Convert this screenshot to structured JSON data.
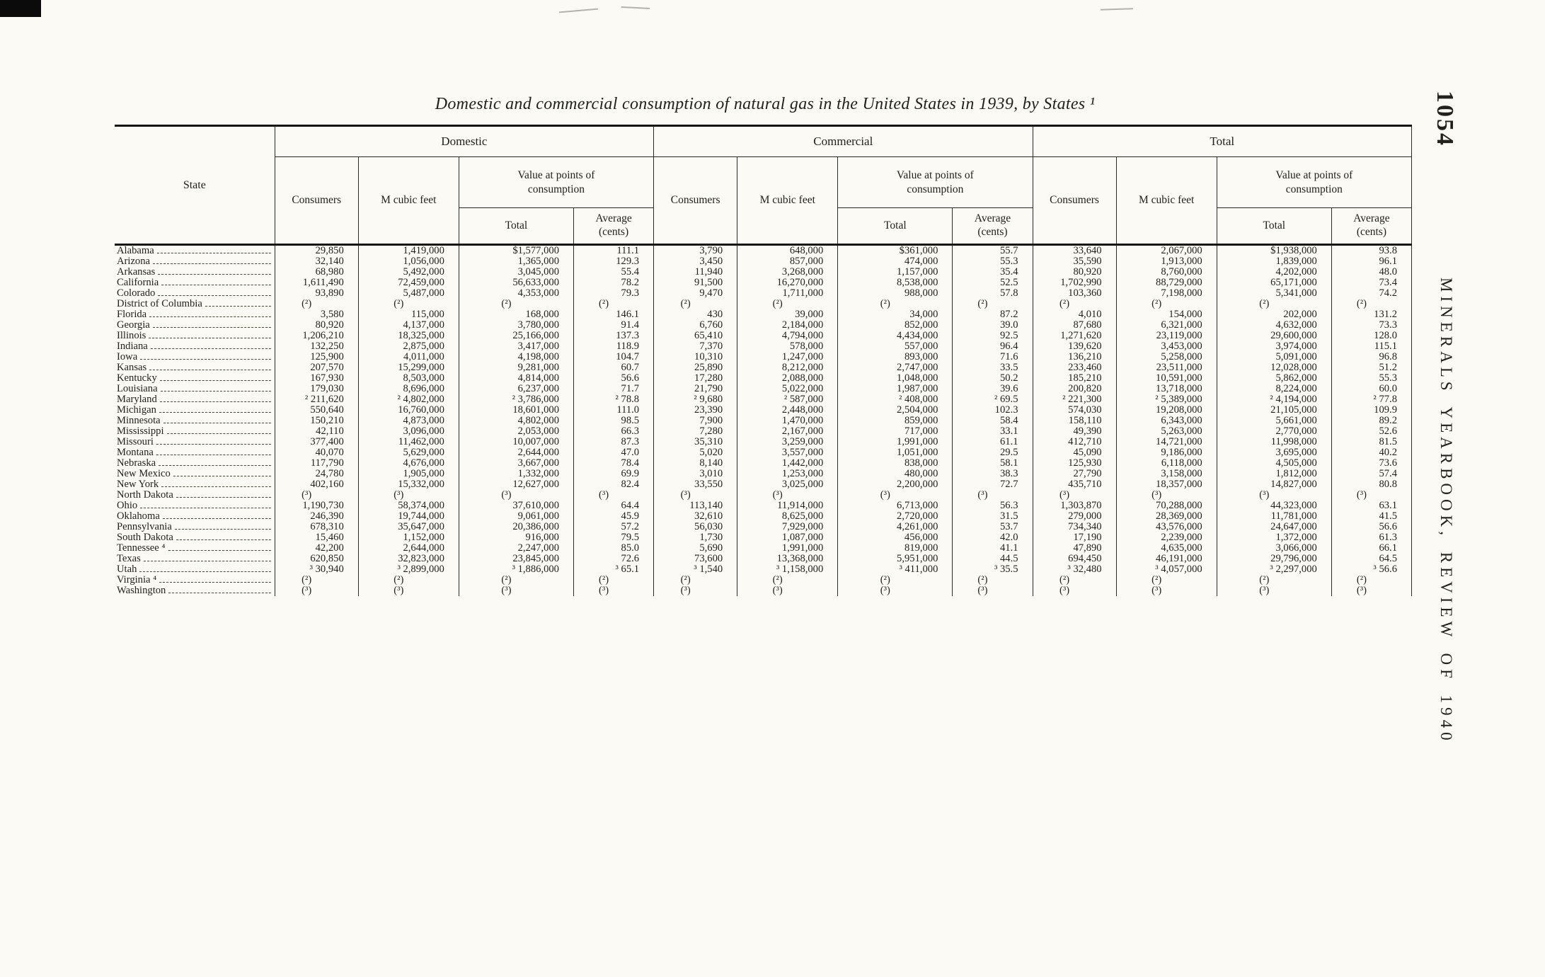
{
  "page": {
    "number": "1054",
    "running_title": "MINERALS YEARBOOK, REVIEW OF 1940"
  },
  "colors": {
    "paper": "#fbfaf4",
    "ink": "#23211c"
  },
  "title": "Domestic and commercial consumption of natural gas in the United States in 1939, by States ¹",
  "table": {
    "state_header": "State",
    "group_headers": [
      "Domestic",
      "Commercial",
      "Total"
    ],
    "sub_headers": {
      "consumers": "Consumers",
      "m_cubic_feet": "M cubic feet",
      "value_at_points": "Value at points of consumption",
      "total": "Total",
      "average": "Average (cents)"
    },
    "rows": [
      [
        "Alabama",
        "29,850",
        "1,419,000",
        "$1,577,000",
        "111.1",
        "3,790",
        "648,000",
        "$361,000",
        "55.7",
        "33,640",
        "2,067,000",
        "$1,938,000",
        "93.8"
      ],
      [
        "Arizona",
        "32,140",
        "1,056,000",
        "1,365,000",
        "129.3",
        "3,450",
        "857,000",
        "474,000",
        "55.3",
        "35,590",
        "1,913,000",
        "1,839,000",
        "96.1"
      ],
      [
        "Arkansas",
        "68,980",
        "5,492,000",
        "3,045,000",
        "55.4",
        "11,940",
        "3,268,000",
        "1,157,000",
        "35.4",
        "80,920",
        "8,760,000",
        "4,202,000",
        "48.0"
      ],
      [
        "California",
        "1,611,490",
        "72,459,000",
        "56,633,000",
        "78.2",
        "91,500",
        "16,270,000",
        "8,538,000",
        "52.5",
        "1,702,990",
        "88,729,000",
        "65,171,000",
        "73.4"
      ],
      [
        "Colorado",
        "93,890",
        "5,487,000",
        "4,353,000",
        "79.3",
        "9,470",
        "1,711,000",
        "988,000",
        "57.8",
        "103,360",
        "7,198,000",
        "5,341,000",
        "74.2"
      ],
      [
        "District of Columbia",
        "(²)",
        "(²)",
        "(²)",
        "(²)",
        "(²)",
        "(²)",
        "(²)",
        "(²)",
        "(²)",
        "(²)",
        "(²)",
        "(²)"
      ],
      [
        "Florida",
        "3,580",
        "115,000",
        "168,000",
        "146.1",
        "430",
        "39,000",
        "34,000",
        "87.2",
        "4,010",
        "154,000",
        "202,000",
        "131.2"
      ],
      [
        "Georgia",
        "80,920",
        "4,137,000",
        "3,780,000",
        "91.4",
        "6,760",
        "2,184,000",
        "852,000",
        "39.0",
        "87,680",
        "6,321,000",
        "4,632,000",
        "73.3"
      ],
      [
        "Illinois",
        "1,206,210",
        "18,325,000",
        "25,166,000",
        "137.3",
        "65,410",
        "4,794,000",
        "4,434,000",
        "92.5",
        "1,271,620",
        "23,119,000",
        "29,600,000",
        "128.0"
      ],
      [
        "Indiana",
        "132,250",
        "2,875,000",
        "3,417,000",
        "118.9",
        "7,370",
        "578,000",
        "557,000",
        "96.4",
        "139,620",
        "3,453,000",
        "3,974,000",
        "115.1"
      ],
      [
        "Iowa",
        "125,900",
        "4,011,000",
        "4,198,000",
        "104.7",
        "10,310",
        "1,247,000",
        "893,000",
        "71.6",
        "136,210",
        "5,258,000",
        "5,091,000",
        "96.8"
      ],
      [
        "Kansas",
        "207,570",
        "15,299,000",
        "9,281,000",
        "60.7",
        "25,890",
        "8,212,000",
        "2,747,000",
        "33.5",
        "233,460",
        "23,511,000",
        "12,028,000",
        "51.2"
      ],
      [
        "Kentucky",
        "167,930",
        "8,503,000",
        "4,814,000",
        "56.6",
        "17,280",
        "2,088,000",
        "1,048,000",
        "50.2",
        "185,210",
        "10,591,000",
        "5,862,000",
        "55.3"
      ],
      [
        "Louisiana",
        "179,030",
        "8,696,000",
        "6,237,000",
        "71.7",
        "21,790",
        "5,022,000",
        "1,987,000",
        "39.6",
        "200,820",
        "13,718,000",
        "8,224,000",
        "60.0"
      ],
      [
        "Maryland",
        "² 211,620",
        "² 4,802,000",
        "² 3,786,000",
        "² 78.8",
        "² 9,680",
        "² 587,000",
        "² 408,000",
        "² 69.5",
        "² 221,300",
        "² 5,389,000",
        "² 4,194,000",
        "² 77.8"
      ],
      [
        "Michigan",
        "550,640",
        "16,760,000",
        "18,601,000",
        "111.0",
        "23,390",
        "2,448,000",
        "2,504,000",
        "102.3",
        "574,030",
        "19,208,000",
        "21,105,000",
        "109.9"
      ],
      [
        "Minnesota",
        "150,210",
        "4,873,000",
        "4,802,000",
        "98.5",
        "7,900",
        "1,470,000",
        "859,000",
        "58.4",
        "158,110",
        "6,343,000",
        "5,661,000",
        "89.2"
      ],
      [
        "Mississippi",
        "42,110",
        "3,096,000",
        "2,053,000",
        "66.3",
        "7,280",
        "2,167,000",
        "717,000",
        "33.1",
        "49,390",
        "5,263,000",
        "2,770,000",
        "52.6"
      ],
      [
        "Missouri",
        "377,400",
        "11,462,000",
        "10,007,000",
        "87.3",
        "35,310",
        "3,259,000",
        "1,991,000",
        "61.1",
        "412,710",
        "14,721,000",
        "11,998,000",
        "81.5"
      ],
      [
        "Montana",
        "40,070",
        "5,629,000",
        "2,644,000",
        "47.0",
        "5,020",
        "3,557,000",
        "1,051,000",
        "29.5",
        "45,090",
        "9,186,000",
        "3,695,000",
        "40.2"
      ],
      [
        "Nebraska",
        "117,790",
        "4,676,000",
        "3,667,000",
        "78.4",
        "8,140",
        "1,442,000",
        "838,000",
        "58.1",
        "125,930",
        "6,118,000",
        "4,505,000",
        "73.6"
      ],
      [
        "New Mexico",
        "24,780",
        "1,905,000",
        "1,332,000",
        "69.9",
        "3,010",
        "1,253,000",
        "480,000",
        "38.3",
        "27,790",
        "3,158,000",
        "1,812,000",
        "57.4"
      ],
      [
        "New York",
        "402,160",
        "15,332,000",
        "12,627,000",
        "82.4",
        "33,550",
        "3,025,000",
        "2,200,000",
        "72.7",
        "435,710",
        "18,357,000",
        "14,827,000",
        "80.8"
      ],
      [
        "North Dakota",
        "(³)",
        "(³)",
        "(³)",
        "(³)",
        "(³)",
        "(³)",
        "(³)",
        "(³)",
        "(³)",
        "(³)",
        "(³)",
        "(³)"
      ],
      [
        "Ohio",
        "1,190,730",
        "58,374,000",
        "37,610,000",
        "64.4",
        "113,140",
        "11,914,000",
        "6,713,000",
        "56.3",
        "1,303,870",
        "70,288,000",
        "44,323,000",
        "63.1"
      ],
      [
        "Oklahoma",
        "246,390",
        "19,744,000",
        "9,061,000",
        "45.9",
        "32,610",
        "8,625,000",
        "2,720,000",
        "31.5",
        "279,000",
        "28,369,000",
        "11,781,000",
        "41.5"
      ],
      [
        "Pennsylvania",
        "678,310",
        "35,647,000",
        "20,386,000",
        "57.2",
        "56,030",
        "7,929,000",
        "4,261,000",
        "53.7",
        "734,340",
        "43,576,000",
        "24,647,000",
        "56.6"
      ],
      [
        "South Dakota",
        "15,460",
        "1,152,000",
        "916,000",
        "79.5",
        "1,730",
        "1,087,000",
        "456,000",
        "42.0",
        "17,190",
        "2,239,000",
        "1,372,000",
        "61.3"
      ],
      [
        "Tennessee ⁴",
        "42,200",
        "2,644,000",
        "2,247,000",
        "85.0",
        "5,690",
        "1,991,000",
        "819,000",
        "41.1",
        "47,890",
        "4,635,000",
        "3,066,000",
        "66.1"
      ],
      [
        "Texas",
        "620,850",
        "32,823,000",
        "23,845,000",
        "72.6",
        "73,600",
        "13,368,000",
        "5,951,000",
        "44.5",
        "694,450",
        "46,191,000",
        "29,796,000",
        "64.5"
      ],
      [
        "Utah",
        "³ 30,940",
        "³ 2,899,000",
        "³ 1,886,000",
        "³ 65.1",
        "³ 1,540",
        "³ 1,158,000",
        "³ 411,000",
        "³ 35.5",
        "³ 32,480",
        "³ 4,057,000",
        "³ 2,297,000",
        "³ 56.6"
      ],
      [
        "Virginia ⁴",
        "(²)",
        "(²)",
        "(²)",
        "(²)",
        "(²)",
        "(²)",
        "(²)",
        "(²)",
        "(²)",
        "(²)",
        "(²)",
        "(²)"
      ],
      [
        "Washington",
        "(³)",
        "(³)",
        "(³)",
        "(³)",
        "(³)",
        "(³)",
        "(³)",
        "(³)",
        "(³)",
        "(³)",
        "(³)",
        "(³)"
      ]
    ]
  }
}
